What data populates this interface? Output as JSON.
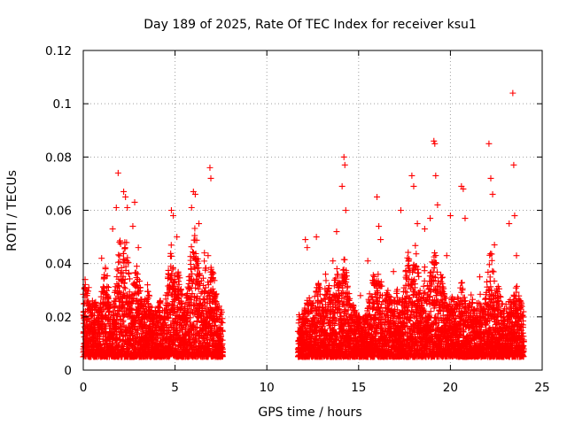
{
  "chart_data": {
    "type": "scatter",
    "title": "Day 189 of 2025, Rate Of TEC Index for receiver ksu1",
    "xlabel": "GPS time / hours",
    "ylabel": "ROTI / TECUs",
    "xlim": [
      0,
      25
    ],
    "ylim": [
      0,
      0.12
    ],
    "x_ticks": [
      "0",
      "5",
      "10",
      "15",
      "20",
      "25"
    ],
    "y_ticks": [
      "0",
      "0.02",
      "0.04",
      "0.06",
      "0.08",
      "0.1",
      "0.12"
    ],
    "grid": true,
    "marker": "plus",
    "color": "#ff0000",
    "series": [
      {
        "points": [
          [
            0.1,
            0.034
          ],
          [
            0.2,
            0.028
          ],
          [
            0.3,
            0.031
          ],
          [
            0.5,
            0.026
          ],
          [
            1.0,
            0.042
          ],
          [
            1.6,
            0.053
          ],
          [
            1.8,
            0.061
          ],
          [
            1.9,
            0.074
          ],
          [
            2.2,
            0.067
          ],
          [
            2.3,
            0.065
          ],
          [
            2.4,
            0.061
          ],
          [
            2.7,
            0.054
          ],
          [
            2.8,
            0.063
          ],
          [
            3.0,
            0.046
          ],
          [
            3.5,
            0.032
          ],
          [
            4.2,
            0.025
          ],
          [
            4.8,
            0.06
          ],
          [
            4.9,
            0.058
          ],
          [
            5.1,
            0.05
          ],
          [
            5.3,
            0.03
          ],
          [
            5.9,
            0.061
          ],
          [
            6.0,
            0.067
          ],
          [
            6.1,
            0.066
          ],
          [
            6.3,
            0.055
          ],
          [
            6.6,
            0.044
          ],
          [
            6.8,
            0.043
          ],
          [
            6.9,
            0.076
          ],
          [
            6.95,
            0.072
          ],
          [
            7.4,
            0.024
          ],
          [
            7.5,
            0.021
          ],
          [
            11.8,
            0.02
          ],
          [
            12.1,
            0.049
          ],
          [
            12.2,
            0.046
          ],
          [
            12.7,
            0.05
          ],
          [
            13.2,
            0.036
          ],
          [
            13.6,
            0.041
          ],
          [
            13.8,
            0.052
          ],
          [
            14.1,
            0.069
          ],
          [
            14.2,
            0.08
          ],
          [
            14.25,
            0.077
          ],
          [
            14.3,
            0.06
          ],
          [
            15.1,
            0.028
          ],
          [
            15.5,
            0.041
          ],
          [
            16.0,
            0.065
          ],
          [
            16.1,
            0.054
          ],
          [
            16.2,
            0.049
          ],
          [
            16.9,
            0.037
          ],
          [
            17.3,
            0.06
          ],
          [
            17.9,
            0.073
          ],
          [
            18.0,
            0.069
          ],
          [
            18.2,
            0.055
          ],
          [
            18.6,
            0.053
          ],
          [
            18.9,
            0.057
          ],
          [
            19.1,
            0.086
          ],
          [
            19.15,
            0.085
          ],
          [
            19.2,
            0.073
          ],
          [
            19.3,
            0.062
          ],
          [
            19.8,
            0.043
          ],
          [
            20.0,
            0.058
          ],
          [
            20.6,
            0.069
          ],
          [
            20.7,
            0.068
          ],
          [
            20.8,
            0.057
          ],
          [
            21.6,
            0.035
          ],
          [
            22.1,
            0.085
          ],
          [
            22.2,
            0.072
          ],
          [
            22.3,
            0.066
          ],
          [
            22.4,
            0.047
          ],
          [
            23.2,
            0.055
          ],
          [
            23.4,
            0.104
          ],
          [
            23.45,
            0.077
          ],
          [
            23.5,
            0.058
          ],
          [
            23.6,
            0.043
          ]
        ]
      }
    ],
    "dense_segments": [
      {
        "x_start": 0.0,
        "x_end": 7.6,
        "y_min": 0.002,
        "y_typical": 0.02
      },
      {
        "x_start": 11.7,
        "x_end": 24.0,
        "y_min": 0.002,
        "y_typical": 0.02
      }
    ],
    "dense_peaks": [
      [
        0.1,
        0.033
      ],
      [
        0.6,
        0.024
      ],
      [
        1.2,
        0.038
      ],
      [
        2.0,
        0.047
      ],
      [
        2.3,
        0.052
      ],
      [
        2.9,
        0.04
      ],
      [
        3.5,
        0.028
      ],
      [
        4.2,
        0.024
      ],
      [
        4.8,
        0.046
      ],
      [
        5.2,
        0.036
      ],
      [
        5.9,
        0.045
      ],
      [
        6.1,
        0.055
      ],
      [
        6.6,
        0.04
      ],
      [
        7.0,
        0.038
      ],
      [
        7.5,
        0.02
      ],
      [
        11.8,
        0.018
      ],
      [
        12.3,
        0.026
      ],
      [
        12.8,
        0.032
      ],
      [
        13.3,
        0.034
      ],
      [
        13.8,
        0.038
      ],
      [
        14.2,
        0.042
      ],
      [
        14.7,
        0.022
      ],
      [
        15.2,
        0.018
      ],
      [
        15.8,
        0.034
      ],
      [
        16.1,
        0.036
      ],
      [
        16.6,
        0.03
      ],
      [
        17.1,
        0.028
      ],
      [
        17.7,
        0.042
      ],
      [
        18.1,
        0.046
      ],
      [
        18.6,
        0.036
      ],
      [
        19.1,
        0.048
      ],
      [
        19.5,
        0.036
      ],
      [
        20.1,
        0.026
      ],
      [
        20.6,
        0.032
      ],
      [
        21.1,
        0.026
      ],
      [
        21.6,
        0.026
      ],
      [
        22.2,
        0.044
      ],
      [
        22.6,
        0.03
      ],
      [
        23.2,
        0.026
      ],
      [
        23.6,
        0.032
      ],
      [
        24.0,
        0.02
      ]
    ]
  }
}
